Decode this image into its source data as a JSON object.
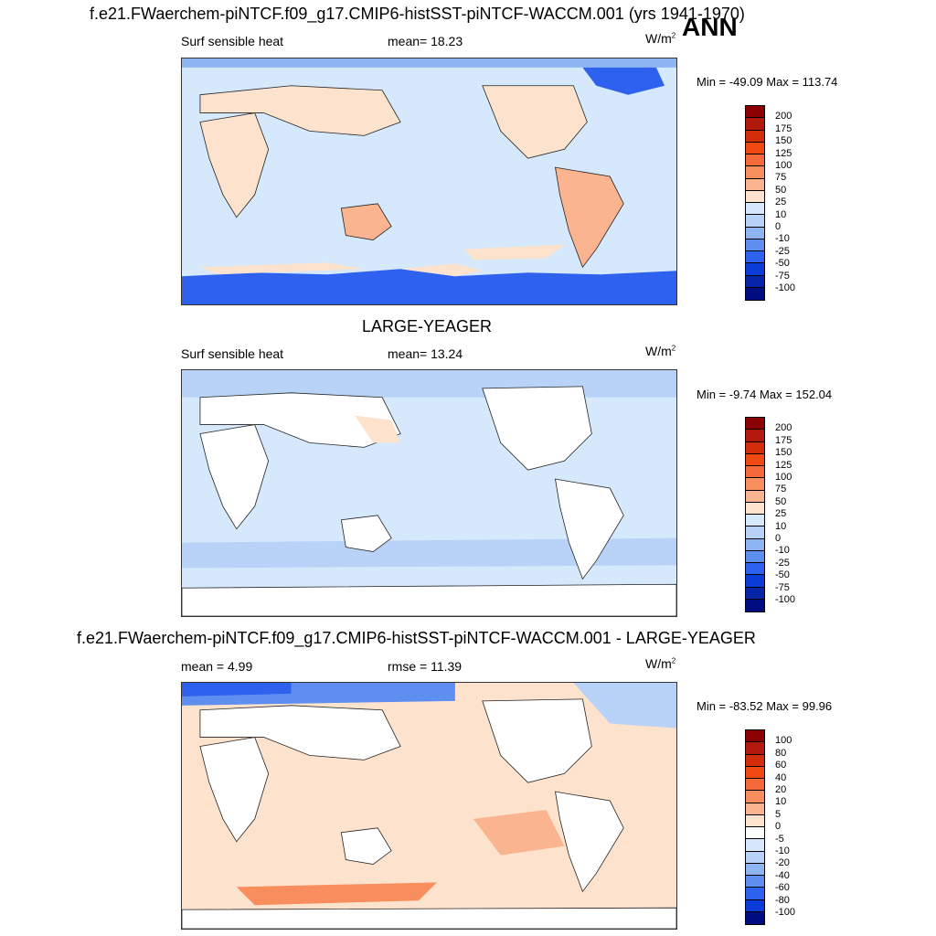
{
  "season": "ANN",
  "panel_top": {
    "title": "f.e21.FWaerchem-piNTCF.f09_g17.CMIP6-histSST-piNTCF-WACCM.001 (yrs 1941-1970)",
    "variable": "Surf sensible heat",
    "mean_text": "mean=  18.23",
    "units": "W/m",
    "units_exp": "2",
    "minmax": "Min = -49.09 Max = 113.74",
    "colorbar_labels": [
      "200",
      "175",
      "150",
      "125",
      "100",
      "75",
      "50",
      "25",
      "10",
      "0",
      "-10",
      "-25",
      "-50",
      "-75",
      "-100"
    ]
  },
  "panel_mid": {
    "title": "LARGE-YEAGER",
    "variable": "Surf sensible heat",
    "mean_text": "mean=  13.24",
    "units": "W/m",
    "units_exp": "2",
    "minmax": "Min =  -9.74 Max = 152.04",
    "colorbar_labels": [
      "200",
      "175",
      "150",
      "125",
      "100",
      "75",
      "50",
      "25",
      "10",
      "0",
      "-10",
      "-25",
      "-50",
      "-75",
      "-100"
    ]
  },
  "panel_diff": {
    "title": "f.e21.FWaerchem-piNTCF.f09_g17.CMIP6-histSST-piNTCF-WACCM.001 - LARGE-YEAGER",
    "mean_text": "mean =   4.99",
    "rmse_text": "rmse =  11.39",
    "units": "W/m",
    "units_exp": "2",
    "minmax": "Min = -83.52 Max =  99.96",
    "colorbar_labels": [
      "100",
      "80",
      "60",
      "40",
      "20",
      "10",
      "5",
      "0",
      "-5",
      "-10",
      "-20",
      "-40",
      "-60",
      "-80",
      "-100"
    ]
  },
  "colors": {
    "abs_scale": [
      "#8b0000",
      "#b2180b",
      "#d42d0c",
      "#f04a12",
      "#f56a3a",
      "#f88e5e",
      "#fbb490",
      "#fde3cd",
      "#d6e8fb",
      "#b8d3f7",
      "#8fb4f2",
      "#5e8ff0",
      "#2e62ee",
      "#0b3bd9",
      "#0624a8",
      "#000d80"
    ],
    "diff_scale": [
      "#8b0000",
      "#b2180b",
      "#d42d0c",
      "#f04a12",
      "#f56a3a",
      "#f88e5e",
      "#fbb490",
      "#fde3cd",
      "#ffffff",
      "#d6e8fb",
      "#b8d3f7",
      "#8fb4f2",
      "#5e8ff0",
      "#2e62ee",
      "#0b3bd9",
      "#000d80"
    ],
    "ocean_top": "#d6e8fb",
    "land_warm": "#fde3cd",
    "cold_polar": "#2e62ee"
  }
}
